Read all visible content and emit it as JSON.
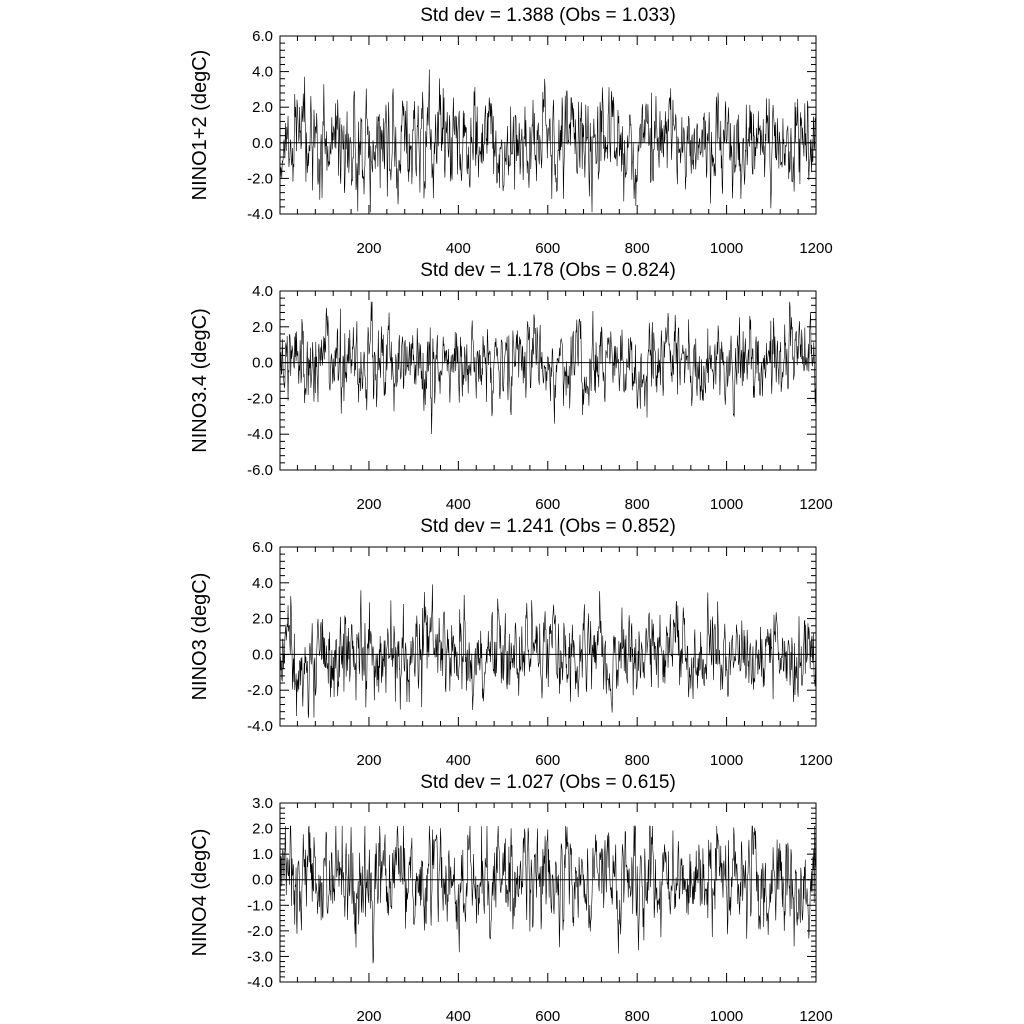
{
  "chart_data": [
    {
      "type": "line",
      "title": "Std dev = 1.388 (Obs = 1.033)",
      "ylabel": "NINO1+2 (degC)",
      "xlabel": "",
      "xlim": [
        1,
        1200
      ],
      "ylim": [
        -4.0,
        6.0
      ],
      "ytick_values": [
        -4.0,
        -2.0,
        0.0,
        2.0,
        4.0,
        6.0
      ],
      "ytick_labels": [
        "-4.0",
        "-2.0",
        "0.0",
        "2.0",
        "4.0",
        "6.0"
      ],
      "xtick_values": [
        200,
        400,
        600,
        800,
        1000,
        1200
      ],
      "xtick_labels": [
        "200",
        "400",
        "600",
        "800",
        "1000",
        "1200"
      ],
      "reference_line": 0.0,
      "grid": false,
      "std_dev": 1.388,
      "obs_std_dev": 1.033,
      "series": [
        {
          "n_points": 1200,
          "std_dev": 1.388,
          "max": 4.8,
          "min": -3.9,
          "color": "#000000"
        }
      ]
    },
    {
      "type": "line",
      "title": "Std dev = 1.178 (Obs = 0.824)",
      "ylabel": "NINO3.4 (degC)",
      "xlabel": "",
      "xlim": [
        1,
        1200
      ],
      "ylim": [
        -6.0,
        4.0
      ],
      "ytick_values": [
        -6.0,
        -4.0,
        -2.0,
        0.0,
        2.0,
        4.0
      ],
      "ytick_labels": [
        "-6.0",
        "-4.0",
        "-2.0",
        "0.0",
        "2.0",
        "4.0"
      ],
      "xtick_values": [
        200,
        400,
        600,
        800,
        1000,
        1200
      ],
      "xtick_labels": [
        "200",
        "400",
        "600",
        "800",
        "1000",
        "1200"
      ],
      "reference_line": 0.0,
      "grid": false,
      "std_dev": 1.178,
      "obs_std_dev": 0.824,
      "series": [
        {
          "n_points": 1200,
          "std_dev": 1.178,
          "max": 3.4,
          "min": -4.0,
          "color": "#000000"
        }
      ]
    },
    {
      "type": "line",
      "title": "Std dev = 1.241 (Obs = 0.852)",
      "ylabel": "NINO3 (degC)",
      "xlabel": "",
      "xlim": [
        1,
        1200
      ],
      "ylim": [
        -4.0,
        6.0
      ],
      "ytick_values": [
        -4.0,
        -2.0,
        0.0,
        2.0,
        4.0,
        6.0
      ],
      "ytick_labels": [
        "-4.0",
        "-2.0",
        "0.0",
        "2.0",
        "4.0",
        "6.0"
      ],
      "xtick_values": [
        200,
        400,
        600,
        800,
        1000,
        1200
      ],
      "xtick_labels": [
        "200",
        "400",
        "600",
        "800",
        "1000",
        "1200"
      ],
      "reference_line": 0.0,
      "grid": false,
      "std_dev": 1.241,
      "obs_std_dev": 0.852,
      "series": [
        {
          "n_points": 1200,
          "std_dev": 1.241,
          "max": 4.3,
          "min": -3.9,
          "color": "#000000"
        }
      ]
    },
    {
      "type": "line",
      "title": "Std dev = 1.027 (Obs = 0.615)",
      "ylabel": "NINO4 (degC)",
      "xlabel": "",
      "xlim": [
        1,
        1200
      ],
      "ylim": [
        -4.0,
        3.0
      ],
      "ytick_values": [
        -4.0,
        -3.0,
        -2.0,
        -1.0,
        0.0,
        1.0,
        2.0,
        3.0
      ],
      "ytick_labels": [
        "-4.0",
        "-3.0",
        "-2.0",
        "-1.0",
        "0.0",
        "1.0",
        "2.0",
        "3.0"
      ],
      "xtick_values": [
        200,
        400,
        600,
        800,
        1000,
        1200
      ],
      "xtick_labels": [
        "200",
        "400",
        "600",
        "800",
        "1000",
        "1200"
      ],
      "reference_line": 0.0,
      "grid": false,
      "std_dev": 1.027,
      "obs_std_dev": 0.615,
      "series": [
        {
          "n_points": 1200,
          "std_dev": 1.027,
          "max": 2.1,
          "min": -3.8,
          "color": "#000000"
        }
      ]
    }
  ]
}
